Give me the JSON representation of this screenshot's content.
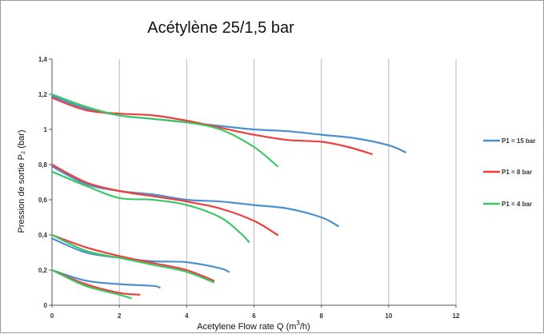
{
  "chart_data": {
    "type": "line",
    "title": "Acétylène 25/1,5 bar",
    "xlabel": "Acetylene  Flow rate  Q (m",
    "xlabel_sup": "3",
    "xlabel_end": "/h)",
    "ylabel": "Pression de sortie P₂ (bar)",
    "xlim": [
      0,
      12
    ],
    "ylim": [
      0,
      1.4
    ],
    "x_ticks": [
      0,
      2,
      4,
      6,
      8,
      10,
      12
    ],
    "y_ticks": [
      0,
      0.2,
      0.4,
      0.6,
      0.8,
      1,
      1.2,
      1.4
    ],
    "x_tick_labels": [
      "0",
      "2",
      "4",
      "6",
      "8",
      "10",
      "12"
    ],
    "y_tick_labels": [
      "0",
      "0,2",
      "0,4",
      "0,6",
      "0,8",
      "1",
      "1,2",
      "1,4"
    ],
    "grid": "vertical",
    "legend_position": "right",
    "series": [
      {
        "name": "P1 = 15 bar",
        "color": "#4a90d0",
        "curves": [
          [
            [
              0,
              1.19
            ],
            [
              1,
              1.12
            ],
            [
              2,
              1.08
            ],
            [
              3,
              1.06
            ],
            [
              4,
              1.04
            ],
            [
              5,
              1.02
            ],
            [
              6,
              1.0
            ],
            [
              7,
              0.99
            ],
            [
              8,
              0.97
            ],
            [
              9,
              0.95
            ],
            [
              10,
              0.91
            ],
            [
              10.5,
              0.87
            ]
          ],
          [
            [
              0,
              0.79
            ],
            [
              1,
              0.69
            ],
            [
              2,
              0.65
            ],
            [
              3,
              0.63
            ],
            [
              4,
              0.6
            ],
            [
              5,
              0.59
            ],
            [
              6,
              0.57
            ],
            [
              7,
              0.55
            ],
            [
              8,
              0.5
            ],
            [
              8.5,
              0.45
            ]
          ],
          [
            [
              0,
              0.38
            ],
            [
              1,
              0.3
            ],
            [
              2,
              0.27
            ],
            [
              3,
              0.25
            ],
            [
              4,
              0.245
            ],
            [
              5,
              0.21
            ],
            [
              5.25,
              0.19
            ]
          ],
          [
            [
              0,
              0.2
            ],
            [
              1,
              0.14
            ],
            [
              2,
              0.12
            ],
            [
              3,
              0.11
            ],
            [
              3.2,
              0.1
            ]
          ]
        ]
      },
      {
        "name": "P1 = 8 bar",
        "color": "#f03c3c",
        "curves": [
          [
            [
              0,
              1.18
            ],
            [
              1,
              1.11
            ],
            [
              2,
              1.09
            ],
            [
              3,
              1.08
            ],
            [
              4,
              1.05
            ],
            [
              5,
              1.01
            ],
            [
              6,
              0.97
            ],
            [
              7,
              0.94
            ],
            [
              8,
              0.93
            ],
            [
              8.8,
              0.9
            ],
            [
              9.5,
              0.86
            ]
          ],
          [
            [
              0,
              0.8
            ],
            [
              1,
              0.7
            ],
            [
              2,
              0.65
            ],
            [
              3,
              0.62
            ],
            [
              4,
              0.59
            ],
            [
              5,
              0.55
            ],
            [
              6,
              0.48
            ],
            [
              6.7,
              0.4
            ]
          ],
          [
            [
              0,
              0.4
            ],
            [
              1,
              0.33
            ],
            [
              2,
              0.28
            ],
            [
              3,
              0.24
            ],
            [
              4,
              0.2
            ],
            [
              4.8,
              0.14
            ]
          ],
          [
            [
              0,
              0.2
            ],
            [
              1,
              0.12
            ],
            [
              2,
              0.07
            ],
            [
              2.6,
              0.06
            ]
          ]
        ]
      },
      {
        "name": "P1 = 4 bar",
        "color": "#3cc864",
        "curves": [
          [
            [
              0,
              1.2
            ],
            [
              1,
              1.13
            ],
            [
              2,
              1.08
            ],
            [
              3,
              1.06
            ],
            [
              4,
              1.04
            ],
            [
              5,
              1.0
            ],
            [
              6,
              0.9
            ],
            [
              6.7,
              0.79
            ]
          ],
          [
            [
              0,
              0.76
            ],
            [
              1,
              0.68
            ],
            [
              2,
              0.61
            ],
            [
              3,
              0.6
            ],
            [
              4,
              0.57
            ],
            [
              5,
              0.5
            ],
            [
              5.6,
              0.41
            ],
            [
              5.85,
              0.36
            ]
          ],
          [
            [
              0,
              0.4
            ],
            [
              1,
              0.31
            ],
            [
              2,
              0.27
            ],
            [
              3,
              0.23
            ],
            [
              4,
              0.19
            ],
            [
              4.8,
              0.13
            ]
          ],
          [
            [
              0,
              0.2
            ],
            [
              1,
              0.11
            ],
            [
              2,
              0.06
            ],
            [
              2.35,
              0.04
            ]
          ]
        ]
      }
    ]
  }
}
